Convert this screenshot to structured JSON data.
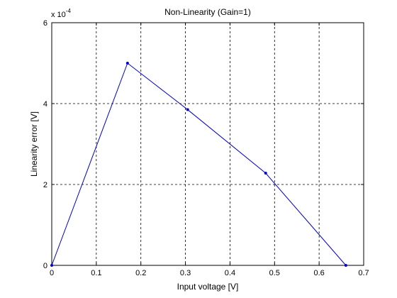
{
  "chart_data": {
    "type": "line",
    "title": "Non-Linearity (Gain=1)",
    "xlabel": "Input voltage [V]",
    "ylabel": "Linearity error [V]",
    "y_multiplier_label": "x 10",
    "y_multiplier_exponent": "-4",
    "xlim": [
      0,
      0.7
    ],
    "ylim": [
      0,
      6
    ],
    "x_ticks": [
      0,
      0.1,
      0.2,
      0.3,
      0.4,
      0.5,
      0.6,
      0.7
    ],
    "x_tick_labels": [
      "0",
      "0.1",
      "0.2",
      "0.3",
      "0.4",
      "0.5",
      "0.6",
      "0.7"
    ],
    "y_ticks": [
      0,
      2,
      4,
      6
    ],
    "y_tick_labels": [
      "0",
      "2",
      "4",
      "6"
    ],
    "grid": true,
    "series": [
      {
        "color": "#0000cc",
        "marker": "dot",
        "x": [
          0,
          0.17,
          0.305,
          0.48,
          0.66
        ],
        "y": [
          0,
          5.0,
          3.85,
          2.28,
          0
        ]
      }
    ]
  }
}
